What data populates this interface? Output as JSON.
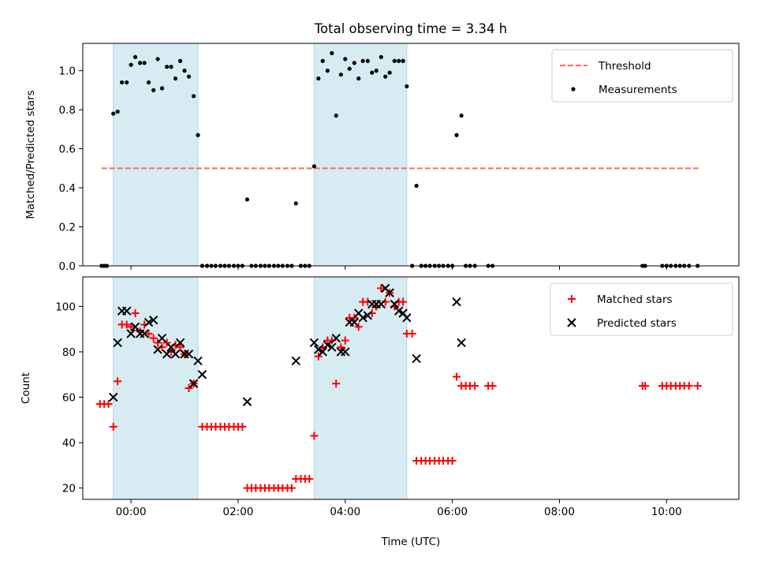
{
  "chart_data": [
    {
      "type": "scatter",
      "title": "Total observing time = 3.34 h",
      "xlabel": "",
      "ylabel": "Matched/Predicted stars",
      "xlim": [
        -0.9,
        11.35
      ],
      "ylim": [
        0,
        1.14
      ],
      "yticks": [
        0,
        0.2,
        0.4,
        0.6,
        0.8,
        1.0
      ],
      "ytick_labels": [
        "0.0",
        "0.2",
        "0.4",
        "0.6",
        "0.8",
        "1.0"
      ],
      "xticks": [
        0,
        2,
        4,
        6,
        8,
        10
      ],
      "shaded_intervals": [
        [
          -0.33,
          1.25
        ],
        [
          3.42,
          5.15
        ]
      ],
      "shade_color": "#add8e6",
      "threshold": {
        "name": "Threshold",
        "value": 0.5,
        "x_range": [
          -0.55,
          10.6
        ],
        "color": "#ff6666",
        "style": "dashed"
      },
      "legend": {
        "location": "upper right",
        "entries": [
          "Threshold",
          "Measurements"
        ]
      },
      "series": [
        {
          "name": "Measurements",
          "marker": "dot",
          "color": "#000000",
          "points": [
            [
              -0.55,
              0
            ],
            [
              -0.5,
              0
            ],
            [
              -0.45,
              0
            ],
            [
              -0.33,
              0.78
            ],
            [
              -0.25,
              0.79
            ],
            [
              -0.17,
              0.94
            ],
            [
              -0.08,
              0.94
            ],
            [
              0.0,
              1.03
            ],
            [
              0.08,
              1.07
            ],
            [
              0.17,
              1.04
            ],
            [
              0.25,
              1.04
            ],
            [
              0.33,
              0.94
            ],
            [
              0.42,
              0.9
            ],
            [
              0.5,
              1.06
            ],
            [
              0.58,
              0.91
            ],
            [
              0.67,
              1.02
            ],
            [
              0.75,
              1.02
            ],
            [
              0.83,
              0.96
            ],
            [
              0.92,
              1.05
            ],
            [
              1.0,
              1.0
            ],
            [
              1.08,
              0.97
            ],
            [
              1.17,
              0.87
            ],
            [
              1.25,
              0.67
            ],
            [
              1.33,
              0
            ],
            [
              1.42,
              0
            ],
            [
              1.5,
              0
            ],
            [
              1.58,
              0
            ],
            [
              1.67,
              0
            ],
            [
              1.75,
              0
            ],
            [
              1.83,
              0
            ],
            [
              1.92,
              0
            ],
            [
              2.0,
              0
            ],
            [
              2.08,
              0
            ],
            [
              2.17,
              0.34
            ],
            [
              2.25,
              0
            ],
            [
              2.33,
              0
            ],
            [
              2.42,
              0
            ],
            [
              2.5,
              0
            ],
            [
              2.58,
              0
            ],
            [
              2.67,
              0
            ],
            [
              2.75,
              0
            ],
            [
              2.83,
              0
            ],
            [
              2.92,
              0
            ],
            [
              3.0,
              0
            ],
            [
              3.08,
              0.32
            ],
            [
              3.17,
              0
            ],
            [
              3.25,
              0
            ],
            [
              3.33,
              0
            ],
            [
              3.42,
              0.51
            ],
            [
              3.5,
              0.96
            ],
            [
              3.58,
              1.05
            ],
            [
              3.67,
              1.0
            ],
            [
              3.75,
              1.09
            ],
            [
              3.83,
              0.77
            ],
            [
              3.92,
              0.98
            ],
            [
              4.0,
              1.06
            ],
            [
              4.08,
              1.01
            ],
            [
              4.17,
              1.04
            ],
            [
              4.25,
              0.96
            ],
            [
              4.33,
              1.05
            ],
            [
              4.42,
              1.05
            ],
            [
              4.5,
              0.99
            ],
            [
              4.58,
              1.0
            ],
            [
              4.67,
              1.07
            ],
            [
              4.75,
              0.97
            ],
            [
              4.83,
              0.99
            ],
            [
              4.92,
              1.05
            ],
            [
              5.0,
              1.05
            ],
            [
              5.08,
              1.05
            ],
            [
              5.15,
              0.92
            ],
            [
              5.25,
              0
            ],
            [
              5.33,
              0.41
            ],
            [
              5.42,
              0
            ],
            [
              5.5,
              0
            ],
            [
              5.58,
              0
            ],
            [
              5.67,
              0
            ],
            [
              5.75,
              0
            ],
            [
              5.83,
              0
            ],
            [
              5.92,
              0
            ],
            [
              6.0,
              0
            ],
            [
              6.08,
              0.67
            ],
            [
              6.17,
              0.77
            ],
            [
              6.25,
              0
            ],
            [
              6.33,
              0
            ],
            [
              6.42,
              0
            ],
            [
              6.67,
              0
            ],
            [
              6.75,
              0
            ],
            [
              9.55,
              0
            ],
            [
              9.6,
              0
            ],
            [
              9.92,
              0
            ],
            [
              10.0,
              0
            ],
            [
              10.08,
              0
            ],
            [
              10.17,
              0
            ],
            [
              10.25,
              0
            ],
            [
              10.33,
              0
            ],
            [
              10.42,
              0
            ],
            [
              10.58,
              0
            ]
          ]
        }
      ]
    },
    {
      "type": "scatter",
      "title": "",
      "xlabel": "Time (UTC)",
      "ylabel": "Count",
      "xlim": [
        -0.9,
        11.35
      ],
      "ylim": [
        15,
        113
      ],
      "yticks": [
        20,
        40,
        60,
        80,
        100
      ],
      "ytick_labels": [
        "20",
        "40",
        "60",
        "80",
        "100"
      ],
      "xticks": [
        0,
        2,
        4,
        6,
        8,
        10
      ],
      "xtick_labels": [
        "00:00",
        "02:00",
        "04:00",
        "06:00",
        "08:00",
        "10:00"
      ],
      "shaded_intervals": [
        [
          -0.33,
          1.25
        ],
        [
          3.42,
          5.15
        ]
      ],
      "shade_color": "#add8e6",
      "legend": {
        "location": "upper right",
        "entries": [
          "Matched stars",
          "Predicted stars"
        ]
      },
      "series": [
        {
          "name": "Matched stars",
          "marker": "plus",
          "color": "#ff0000",
          "points": [
            [
              -0.58,
              57
            ],
            [
              -0.5,
              57
            ],
            [
              -0.42,
              57
            ],
            [
              -0.33,
              47
            ],
            [
              -0.25,
              67
            ],
            [
              -0.17,
              92
            ],
            [
              -0.08,
              92
            ],
            [
              0.0,
              91
            ],
            [
              0.08,
              97
            ],
            [
              0.17,
              89
            ],
            [
              0.25,
              92
            ],
            [
              0.33,
              88
            ],
            [
              0.42,
              86
            ],
            [
              0.5,
              84
            ],
            [
              0.58,
              82
            ],
            [
              0.67,
              84
            ],
            [
              0.75,
              80
            ],
            [
              0.83,
              83
            ],
            [
              0.92,
              82
            ],
            [
              1.0,
              79
            ],
            [
              1.08,
              64
            ],
            [
              1.17,
              66
            ],
            [
              1.33,
              47
            ],
            [
              1.42,
              47
            ],
            [
              1.5,
              47
            ],
            [
              1.58,
              47
            ],
            [
              1.67,
              47
            ],
            [
              1.75,
              47
            ],
            [
              1.83,
              47
            ],
            [
              1.92,
              47
            ],
            [
              2.0,
              47
            ],
            [
              2.08,
              47
            ],
            [
              2.17,
              20
            ],
            [
              2.25,
              20
            ],
            [
              2.33,
              20
            ],
            [
              2.42,
              20
            ],
            [
              2.5,
              20
            ],
            [
              2.58,
              20
            ],
            [
              2.67,
              20
            ],
            [
              2.75,
              20
            ],
            [
              2.83,
              20
            ],
            [
              2.92,
              20
            ],
            [
              3.0,
              20
            ],
            [
              3.08,
              24
            ],
            [
              3.17,
              24
            ],
            [
              3.25,
              24
            ],
            [
              3.33,
              24
            ],
            [
              3.42,
              43
            ],
            [
              3.5,
              78
            ],
            [
              3.58,
              82
            ],
            [
              3.67,
              85
            ],
            [
              3.75,
              85
            ],
            [
              3.83,
              66
            ],
            [
              3.92,
              82
            ],
            [
              4.0,
              85
            ],
            [
              4.08,
              95
            ],
            [
              4.17,
              95
            ],
            [
              4.25,
              91
            ],
            [
              4.33,
              102
            ],
            [
              4.42,
              102
            ],
            [
              4.5,
              97
            ],
            [
              4.58,
              100
            ],
            [
              4.67,
              108
            ],
            [
              4.75,
              102
            ],
            [
              4.83,
              106
            ],
            [
              4.92,
              100
            ],
            [
              5.0,
              102
            ],
            [
              5.08,
              102
            ],
            [
              5.15,
              88
            ],
            [
              5.25,
              88
            ],
            [
              5.33,
              32
            ],
            [
              5.42,
              32
            ],
            [
              5.5,
              32
            ],
            [
              5.58,
              32
            ],
            [
              5.67,
              32
            ],
            [
              5.75,
              32
            ],
            [
              5.83,
              32
            ],
            [
              5.92,
              32
            ],
            [
              6.0,
              32
            ],
            [
              6.08,
              69
            ],
            [
              6.17,
              65
            ],
            [
              6.25,
              65
            ],
            [
              6.33,
              65
            ],
            [
              6.42,
              65
            ],
            [
              6.67,
              65
            ],
            [
              6.75,
              65
            ],
            [
              9.55,
              65
            ],
            [
              9.6,
              65
            ],
            [
              9.92,
              65
            ],
            [
              10.0,
              65
            ],
            [
              10.08,
              65
            ],
            [
              10.17,
              65
            ],
            [
              10.25,
              65
            ],
            [
              10.33,
              65
            ],
            [
              10.42,
              65
            ],
            [
              10.58,
              65
            ]
          ]
        },
        {
          "name": "Predicted stars",
          "marker": "x",
          "color": "#000000",
          "points": [
            [
              -0.33,
              60
            ],
            [
              -0.25,
              84
            ],
            [
              -0.17,
              98
            ],
            [
              -0.08,
              98
            ],
            [
              0.0,
              88
            ],
            [
              0.08,
              91
            ],
            [
              0.17,
              88
            ],
            [
              0.25,
              88
            ],
            [
              0.33,
              93
            ],
            [
              0.42,
              94
            ],
            [
              0.5,
              81
            ],
            [
              0.58,
              86
            ],
            [
              0.67,
              79
            ],
            [
              0.75,
              82
            ],
            [
              0.83,
              79
            ],
            [
              0.92,
              84
            ],
            [
              1.0,
              79
            ],
            [
              1.08,
              79
            ],
            [
              1.17,
              66
            ],
            [
              1.25,
              76
            ],
            [
              1.33,
              70
            ],
            [
              2.17,
              58
            ],
            [
              3.08,
              76
            ],
            [
              3.42,
              84
            ],
            [
              3.5,
              81
            ],
            [
              3.58,
              80
            ],
            [
              3.67,
              83
            ],
            [
              3.75,
              82
            ],
            [
              3.83,
              86
            ],
            [
              3.92,
              80
            ],
            [
              4.0,
              80
            ],
            [
              4.08,
              93
            ],
            [
              4.17,
              93
            ],
            [
              4.25,
              97
            ],
            [
              4.33,
              95
            ],
            [
              4.42,
              96
            ],
            [
              4.5,
              101
            ],
            [
              4.58,
              101
            ],
            [
              4.67,
              101
            ],
            [
              4.75,
              108
            ],
            [
              4.83,
              106
            ],
            [
              4.92,
              101
            ],
            [
              5.0,
              98
            ],
            [
              5.08,
              97
            ],
            [
              5.15,
              95
            ],
            [
              5.33,
              77
            ],
            [
              6.08,
              102
            ],
            [
              6.17,
              84
            ]
          ]
        }
      ]
    }
  ]
}
